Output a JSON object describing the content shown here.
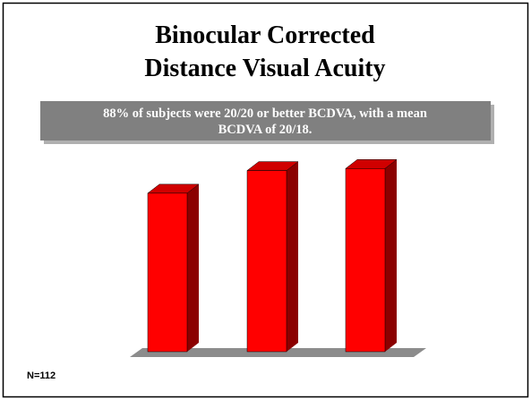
{
  "chart_data": {
    "type": "bar3d",
    "title": [
      "Binocular Corrected",
      "Distance Visual Acuity"
    ],
    "annotation": [
      "88% of subjects were 20/20 or better BCDVA, with a mean",
      "BCDVA of 20/18."
    ],
    "footnote": "N=112",
    "categories": [
      null,
      null,
      null
    ],
    "values": [
      77,
      88,
      89
    ],
    "color": "#ff0000",
    "ylim": [
      0,
      100
    ]
  }
}
